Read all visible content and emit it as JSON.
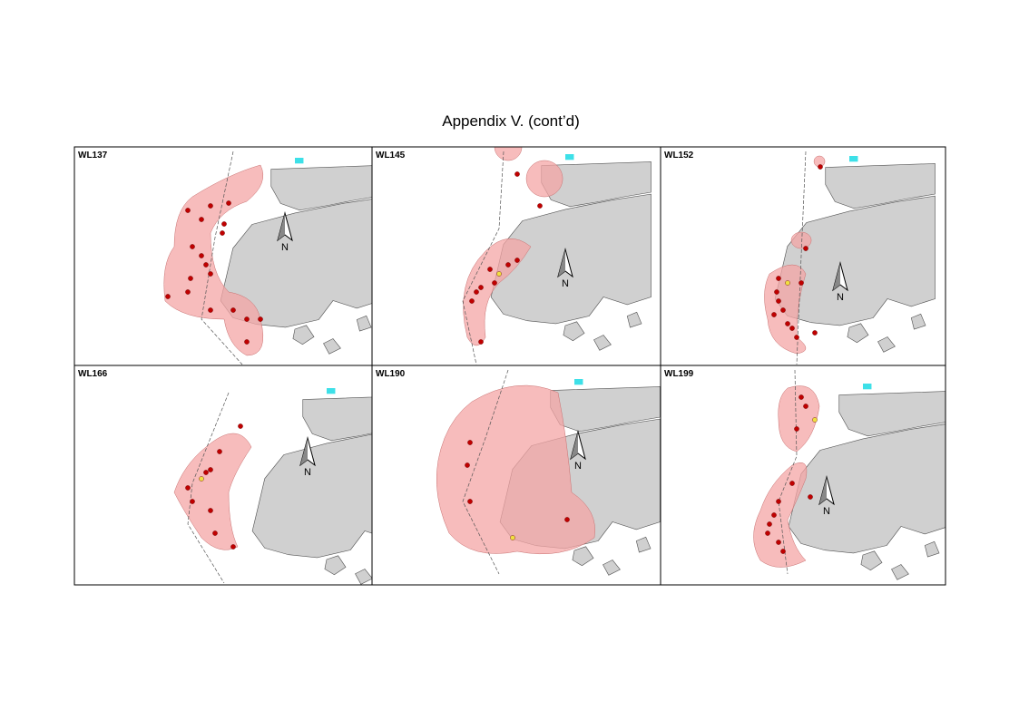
{
  "title": "Appendix V.  (cont’d)",
  "panels": [
    {
      "label": "WL137",
      "north": "N"
    },
    {
      "label": "WL145",
      "north": "N"
    },
    {
      "label": "WL152",
      "north": "N"
    },
    {
      "label": "WL166",
      "north": "N"
    },
    {
      "label": "WL190",
      "north": "N"
    },
    {
      "label": "WL199",
      "north": "N"
    }
  ]
}
